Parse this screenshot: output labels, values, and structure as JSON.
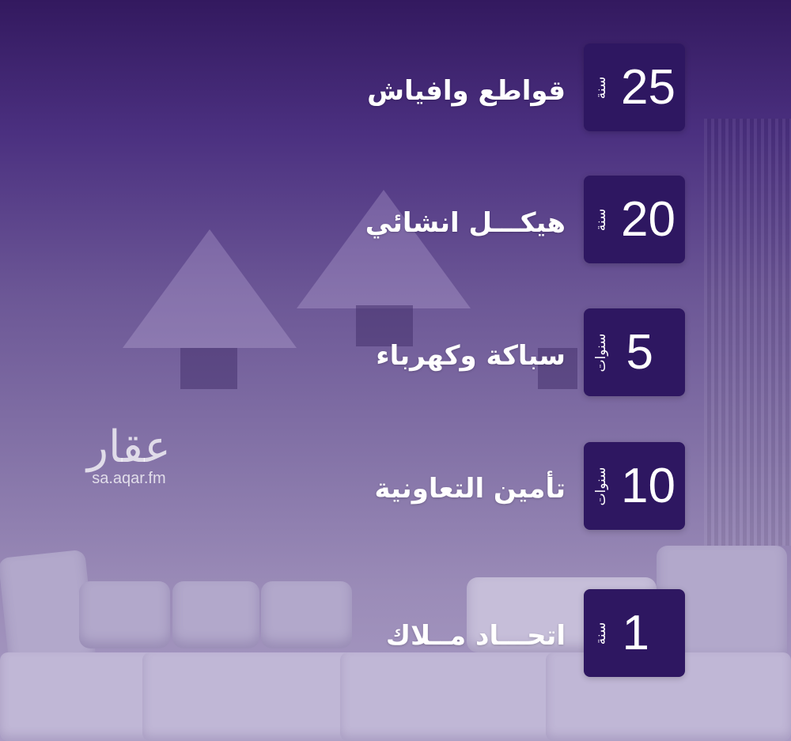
{
  "items": [
    {
      "number": "25",
      "unit": "سنة",
      "label": "قواطع وافياش"
    },
    {
      "number": "20",
      "unit": "سنة",
      "label": "هيكـــل انشائي"
    },
    {
      "number": "5",
      "unit": "سنوات",
      "label": "سباكة وكهرباء"
    },
    {
      "number": "10",
      "unit": "سنوات",
      "label": "تأمين التعاونية"
    },
    {
      "number": "1",
      "unit": "سنة",
      "label": "اتحـــاد مــلاك"
    }
  ],
  "watermark": {
    "logo_text": "عقار",
    "url": "sa.aqar.fm"
  },
  "colors": {
    "box": "#2e1761",
    "background_top": "#33195f",
    "background_bottom": "#a99cc4"
  }
}
